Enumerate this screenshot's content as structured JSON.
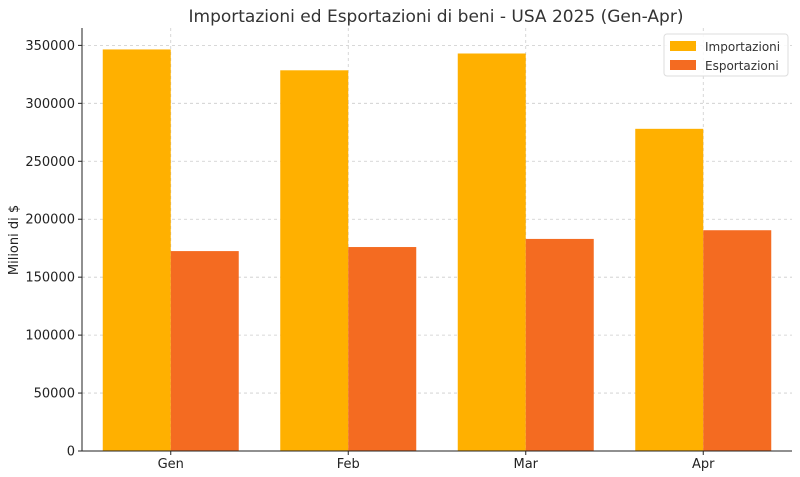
{
  "chart_data": {
    "type": "bar",
    "title": "Importazioni ed Esportazioni di beni - USA 2025 (Gen-Apr)",
    "ylabel": "Milioni di $",
    "xlabel": "",
    "categories": [
      "Gen",
      "Feb",
      "Mar",
      "Apr"
    ],
    "series": [
      {
        "name": "Importazioni",
        "color": "#FFB000",
        "values": [
          346500,
          328500,
          343000,
          278000
        ]
      },
      {
        "name": "Esportazioni",
        "color": "#F46B21",
        "values": [
          172500,
          176000,
          183000,
          190500
        ]
      }
    ],
    "ylim": [
      0,
      365000
    ],
    "yticks": [
      0,
      50000,
      100000,
      150000,
      200000,
      250000,
      300000,
      350000
    ],
    "grid": true,
    "legend_position": "top-right"
  }
}
